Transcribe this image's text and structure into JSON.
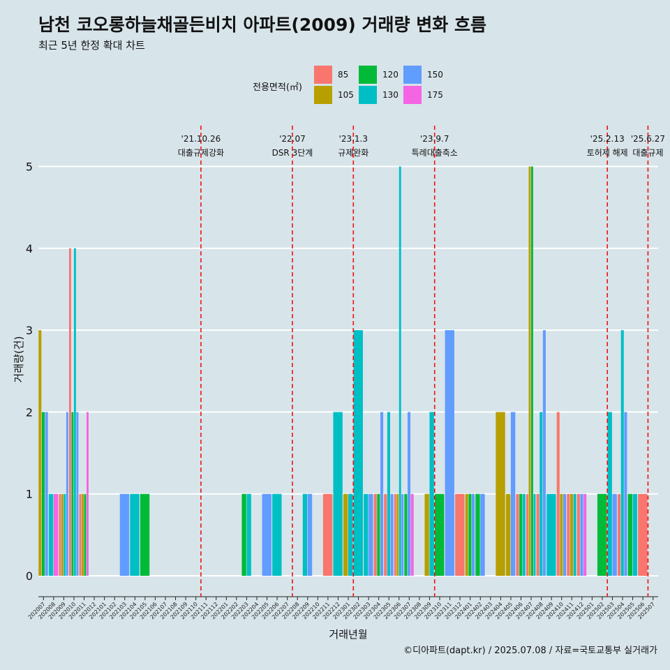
{
  "header": {
    "title": "남천 코오롱하늘채골든비치 아파트(2009) 거래량 변화 흐름",
    "subtitle": "최근 5년 한정 확대 차트"
  },
  "caption": "©디아파트(dapt.kr) / 2025.07.08 / 자료=국토교통부 실거래가",
  "legend": {
    "title": "전용면적(㎡)",
    "position": "top"
  },
  "chart_data": {
    "type": "bar",
    "xlabel": "거래년월",
    "ylabel": "거래량(건)",
    "ylim": [
      0,
      5
    ],
    "yticks": [
      0,
      1,
      2,
      3,
      4,
      5
    ],
    "grid": true,
    "series": [
      {
        "name": "85",
        "color": "#F8766D"
      },
      {
        "name": "105",
        "color": "#B79F00"
      },
      {
        "name": "120",
        "color": "#00BA38"
      },
      {
        "name": "130",
        "color": "#00BFC4"
      },
      {
        "name": "150",
        "color": "#619CFF"
      },
      {
        "name": "175",
        "color": "#F564E3"
      }
    ],
    "months": [
      "202007",
      "202008",
      "202009",
      "202010",
      "202011",
      "202012",
      "202101",
      "202102",
      "202103",
      "202104",
      "202105",
      "202106",
      "202107",
      "202108",
      "202109",
      "202110",
      "202111",
      "202112",
      "202201",
      "202202",
      "202203",
      "202204",
      "202205",
      "202206",
      "202207",
      "202208",
      "202209",
      "202210",
      "202211",
      "202212",
      "202301",
      "202302",
      "202303",
      "202304",
      "202305",
      "202306",
      "202307",
      "202308",
      "202309",
      "202310",
      "202311",
      "202312",
      "202401",
      "202402",
      "202403",
      "202404",
      "202405",
      "202406",
      "202407",
      "202408",
      "202409",
      "202410",
      "202411",
      "202412",
      "202501",
      "202502",
      "202503",
      "202504",
      "202505",
      "202506",
      "202507"
    ],
    "bars": [
      {
        "month": "202007",
        "values": [
          [
            "105",
            3
          ],
          [
            "120",
            2
          ],
          [
            "150",
            2
          ]
        ]
      },
      {
        "month": "202008",
        "values": [
          [
            "130",
            1
          ],
          [
            "175",
            1
          ]
        ]
      },
      {
        "month": "202009",
        "values": [
          [
            "85",
            1
          ],
          [
            "105",
            1
          ],
          [
            "130",
            1
          ],
          [
            "150",
            2
          ]
        ]
      },
      {
        "month": "202010",
        "values": [
          [
            "85",
            4
          ],
          [
            "120",
            2
          ],
          [
            "130",
            4
          ],
          [
            "150",
            2
          ]
        ]
      },
      {
        "month": "202011",
        "values": [
          [
            "85",
            1
          ],
          [
            "105",
            1
          ],
          [
            "120",
            1
          ],
          [
            "175",
            2
          ]
        ]
      },
      {
        "month": "202103",
        "values": [
          [
            "150",
            1
          ]
        ]
      },
      {
        "month": "202104",
        "values": [
          [
            "130",
            1
          ]
        ]
      },
      {
        "month": "202105",
        "values": [
          [
            "120",
            1
          ]
        ]
      },
      {
        "month": "202203",
        "values": [
          [
            "120",
            1
          ],
          [
            "130",
            1
          ]
        ]
      },
      {
        "month": "202205",
        "values": [
          [
            "150",
            1
          ]
        ]
      },
      {
        "month": "202206",
        "values": [
          [
            "130",
            1
          ]
        ]
      },
      {
        "month": "202209",
        "values": [
          [
            "130",
            1
          ],
          [
            "150",
            1
          ]
        ]
      },
      {
        "month": "202211",
        "values": [
          [
            "85",
            1
          ]
        ]
      },
      {
        "month": "202212",
        "values": [
          [
            "130",
            2
          ]
        ]
      },
      {
        "month": "202301",
        "values": [
          [
            "105",
            1
          ],
          [
            "130",
            1
          ]
        ]
      },
      {
        "month": "202302",
        "values": [
          [
            "130",
            3
          ]
        ]
      },
      {
        "month": "202303",
        "values": [
          [
            "130",
            1
          ],
          [
            "150",
            1
          ]
        ]
      },
      {
        "month": "202304",
        "values": [
          [
            "85",
            1
          ],
          [
            "120",
            1
          ],
          [
            "150",
            2
          ]
        ]
      },
      {
        "month": "202305",
        "values": [
          [
            "85",
            1
          ],
          [
            "130",
            2
          ],
          [
            "150",
            1
          ]
        ]
      },
      {
        "month": "202306",
        "values": [
          [
            "85",
            1
          ],
          [
            "105",
            1
          ],
          [
            "130",
            5
          ],
          [
            "150",
            1
          ]
        ]
      },
      {
        "month": "202307",
        "values": [
          [
            "120",
            1
          ],
          [
            "150",
            2
          ],
          [
            "175",
            1
          ]
        ]
      },
      {
        "month": "202309",
        "values": [
          [
            "105",
            1
          ],
          [
            "130",
            2
          ]
        ]
      },
      {
        "month": "202310",
        "values": [
          [
            "120",
            1
          ]
        ]
      },
      {
        "month": "202311",
        "values": [
          [
            "150",
            3
          ]
        ]
      },
      {
        "month": "202312",
        "values": [
          [
            "85",
            1
          ]
        ]
      },
      {
        "month": "202401",
        "values": [
          [
            "105",
            1
          ],
          [
            "120",
            1
          ],
          [
            "150",
            1
          ]
        ]
      },
      {
        "month": "202402",
        "values": [
          [
            "120",
            1
          ],
          [
            "150",
            1
          ]
        ]
      },
      {
        "month": "202404",
        "values": [
          [
            "105",
            2
          ]
        ]
      },
      {
        "month": "202405",
        "values": [
          [
            "105",
            1
          ],
          [
            "150",
            2
          ]
        ]
      },
      {
        "month": "202406",
        "values": [
          [
            "85",
            1
          ],
          [
            "120",
            1
          ],
          [
            "130",
            1
          ]
        ]
      },
      {
        "month": "202407",
        "values": [
          [
            "85",
            1
          ],
          [
            "105",
            5
          ],
          [
            "120",
            5
          ],
          [
            "130",
            1
          ]
        ]
      },
      {
        "month": "202408",
        "values": [
          [
            "85",
            1
          ],
          [
            "130",
            2
          ],
          [
            "150",
            3
          ]
        ]
      },
      {
        "month": "202409",
        "values": [
          [
            "130",
            1
          ]
        ]
      },
      {
        "month": "202410",
        "values": [
          [
            "85",
            2
          ],
          [
            "105",
            1
          ],
          [
            "150",
            1
          ]
        ]
      },
      {
        "month": "202411",
        "values": [
          [
            "85",
            1
          ],
          [
            "105",
            1
          ],
          [
            "130",
            1
          ]
        ]
      },
      {
        "month": "202412",
        "values": [
          [
            "85",
            1
          ],
          [
            "150",
            1
          ],
          [
            "175",
            1
          ]
        ]
      },
      {
        "month": "202502",
        "values": [
          [
            "120",
            1
          ]
        ]
      },
      {
        "month": "202503",
        "values": [
          [
            "130",
            2
          ],
          [
            "150",
            1
          ]
        ]
      },
      {
        "month": "202504",
        "values": [
          [
            "85",
            1
          ],
          [
            "130",
            3
          ],
          [
            "150",
            2
          ]
        ]
      },
      {
        "month": "202505",
        "values": [
          [
            "120",
            1
          ],
          [
            "130",
            1
          ]
        ]
      },
      {
        "month": "202506",
        "values": [
          [
            "85",
            1
          ]
        ]
      }
    ],
    "events": [
      {
        "after_month": "202110",
        "date": "'21.10.26",
        "label": "대출규제강화"
      },
      {
        "after_month": "202207",
        "date": "'22.07",
        "label": "DSR 3단계"
      },
      {
        "after_month": "202301",
        "date": "'23.1.3",
        "label": "규제완화"
      },
      {
        "after_month": "202309",
        "date": "'23.9.7",
        "label": "특례대출축소"
      },
      {
        "after_month": "202502",
        "date": "'25.2.13",
        "label": "토허제 해제"
      },
      {
        "after_month": "202506",
        "date": "'25.6.27",
        "label": "대출규제"
      }
    ]
  }
}
